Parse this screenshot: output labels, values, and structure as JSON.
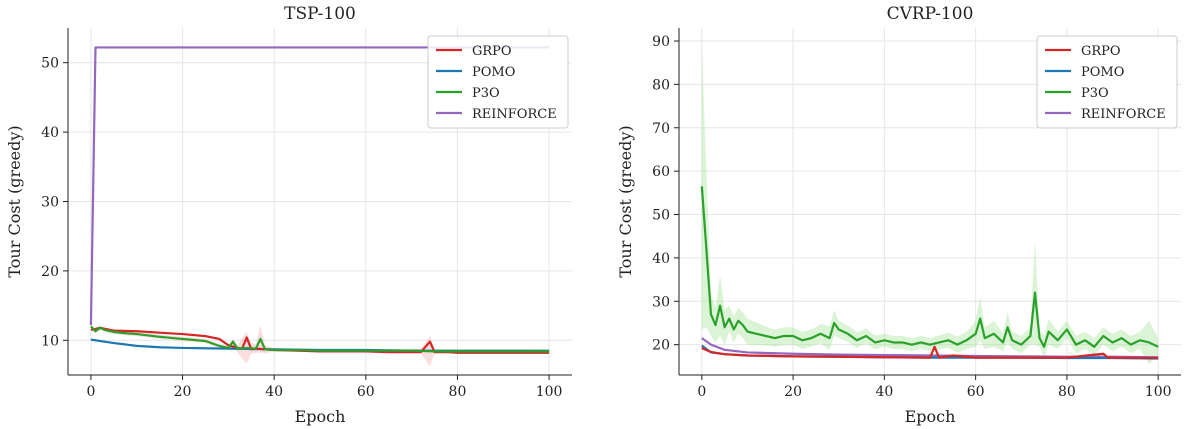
{
  "chart_data": [
    {
      "type": "line",
      "title": "TSP-100",
      "xlabel": "Epoch",
      "ylabel": "Tour Cost (greedy)",
      "xlim": [
        -5,
        105
      ],
      "ylim": [
        5,
        55
      ],
      "xticks": [
        0,
        20,
        40,
        60,
        80,
        100
      ],
      "yticks": [
        10,
        20,
        30,
        40,
        50
      ],
      "grid": true,
      "legend_position": "top-right",
      "series": [
        {
          "name": "GRPO",
          "color": "#d62728",
          "x": [
            0,
            2,
            5,
            10,
            15,
            20,
            25,
            28,
            30,
            32,
            33,
            34,
            35,
            36,
            38,
            40,
            45,
            50,
            55,
            60,
            65,
            70,
            72,
            74,
            75,
            78,
            80,
            85,
            90,
            95,
            100
          ],
          "y": [
            11.5,
            11.8,
            11.4,
            11.3,
            11.1,
            10.9,
            10.6,
            10.2,
            9.3,
            8.9,
            8.8,
            10.4,
            8.7,
            8.8,
            8.7,
            8.6,
            8.5,
            8.4,
            8.4,
            8.4,
            8.3,
            8.3,
            8.3,
            9.8,
            8.3,
            8.3,
            8.2,
            8.2,
            8.2,
            8.2,
            8.2
          ]
        },
        {
          "name": "POMO",
          "color": "#1f77b4",
          "x": [
            0,
            5,
            10,
            15,
            20,
            30,
            40,
            50,
            60,
            70,
            80,
            90,
            100
          ],
          "y": [
            10.1,
            9.6,
            9.2,
            9.0,
            8.9,
            8.8,
            8.7,
            8.6,
            8.6,
            8.5,
            8.5,
            8.5,
            8.5
          ]
        },
        {
          "name": "P3O",
          "color": "#2ca02c",
          "x": [
            0,
            1,
            2,
            3,
            5,
            8,
            10,
            15,
            20,
            25,
            28,
            30,
            31,
            32,
            34,
            36,
            37,
            38,
            40,
            45,
            50,
            55,
            60,
            65,
            70,
            75,
            80,
            85,
            90,
            95,
            100
          ],
          "y": [
            12.0,
            11.3,
            11.8,
            11.5,
            11.2,
            11.0,
            10.9,
            10.5,
            10.2,
            9.9,
            9.2,
            8.9,
            9.8,
            8.8,
            8.9,
            8.8,
            10.2,
            8.7,
            8.6,
            8.6,
            8.5,
            8.5,
            8.5,
            8.5,
            8.5,
            8.4,
            8.4,
            8.4,
            8.4,
            8.4,
            8.4
          ]
        },
        {
          "name": "REINFORCE",
          "color": "#9467bd",
          "x": [
            0,
            1,
            10,
            20,
            30,
            40,
            50,
            60,
            70,
            80,
            90,
            100
          ],
          "y": [
            12.2,
            52.2,
            52.2,
            52.2,
            52.2,
            52.2,
            52.2,
            52.2,
            52.2,
            52.2,
            52.2,
            52.2
          ]
        }
      ]
    },
    {
      "type": "line",
      "title": "CVRP-100",
      "xlabel": "Epoch",
      "ylabel": "Tour Cost (greedy)",
      "xlim": [
        -5,
        105
      ],
      "ylim": [
        13,
        93
      ],
      "xticks": [
        0,
        20,
        40,
        60,
        80,
        100
      ],
      "yticks": [
        20,
        30,
        40,
        50,
        60,
        70,
        80,
        90
      ],
      "grid": true,
      "legend_position": "top-right",
      "series": [
        {
          "name": "GRPO",
          "color": "#d62728",
          "x": [
            0,
            2,
            5,
            10,
            20,
            30,
            40,
            50,
            51,
            52,
            55,
            60,
            70,
            80,
            88,
            89,
            90,
            100
          ],
          "y": [
            19.2,
            18.3,
            17.8,
            17.5,
            17.3,
            17.2,
            17.1,
            17.0,
            19.5,
            17.0,
            17.5,
            17.0,
            17.0,
            17.0,
            17.9,
            17.0,
            17.0,
            16.9
          ]
        },
        {
          "name": "POMO",
          "color": "#1f77b4",
          "x": [
            0,
            2,
            5,
            10,
            20,
            30,
            40,
            50,
            60,
            70,
            80,
            90,
            100
          ],
          "y": [
            19.8,
            18.2,
            17.8,
            17.5,
            17.3,
            17.2,
            17.1,
            17.0,
            17.0,
            17.0,
            16.9,
            16.9,
            16.8
          ]
        },
        {
          "name": "P3O",
          "color": "#2ca02c",
          "x": [
            0,
            1,
            2,
            3,
            4,
            5,
            6,
            7,
            8,
            9,
            10,
            12,
            14,
            16,
            18,
            20,
            22,
            24,
            26,
            28,
            29,
            30,
            32,
            34,
            36,
            38,
            40,
            42,
            44,
            46,
            48,
            50,
            52,
            54,
            56,
            58,
            60,
            61,
            62,
            64,
            66,
            67,
            68,
            70,
            72,
            73,
            74,
            75,
            76,
            78,
            80,
            82,
            84,
            86,
            88,
            90,
            92,
            94,
            96,
            98,
            100
          ],
          "y": [
            56.5,
            42.0,
            27.0,
            24.5,
            29.0,
            24.0,
            26.0,
            23.5,
            25.5,
            24.5,
            23.0,
            22.5,
            22.0,
            21.5,
            22.0,
            22.0,
            21.0,
            21.5,
            22.5,
            21.5,
            25.0,
            23.5,
            22.5,
            21.0,
            22.0,
            20.5,
            21.0,
            20.5,
            20.5,
            20.0,
            20.5,
            20.0,
            20.5,
            21.0,
            20.0,
            21.0,
            22.5,
            26.0,
            21.5,
            22.5,
            20.5,
            24.0,
            21.0,
            20.0,
            22.0,
            32.0,
            21.5,
            19.5,
            23.0,
            21.0,
            23.5,
            20.0,
            21.0,
            19.5,
            22.0,
            20.5,
            21.5,
            20.0,
            21.0,
            20.5,
            19.5
          ]
        },
        {
          "name": "REINFORCE",
          "color": "#9467bd",
          "x": [
            0,
            2,
            5,
            10,
            20,
            30,
            40,
            50,
            60,
            70,
            80,
            90,
            100
          ],
          "y": [
            21.5,
            20.0,
            18.8,
            18.2,
            17.9,
            17.7,
            17.6,
            17.5,
            17.4,
            17.3,
            17.2,
            17.2,
            17.1
          ]
        }
      ]
    }
  ]
}
